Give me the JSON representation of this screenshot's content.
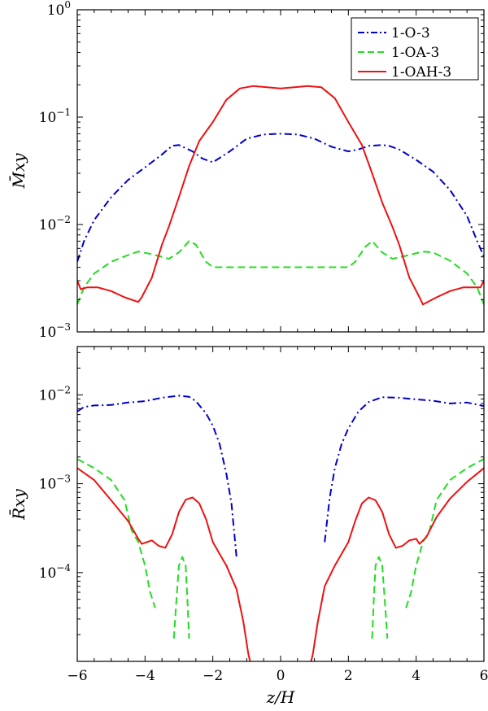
{
  "figure": {
    "xlabel": "z/H"
  },
  "chart_data": [
    {
      "type": "line",
      "panel": "top",
      "ylabel": "M̄xy",
      "yscale": "log",
      "xlim": [
        -6,
        6
      ],
      "ylim": [
        0.001,
        1
      ],
      "x_ticks": [
        -6,
        -4,
        -2,
        0,
        2,
        4,
        6
      ],
      "y_ticks": [
        {
          "value": 1,
          "base": "10",
          "exp": "0"
        },
        {
          "value": 0.1,
          "base": "10",
          "exp": "−1"
        },
        {
          "value": 0.01,
          "base": "10",
          "exp": "−2"
        },
        {
          "value": 0.001,
          "base": "10",
          "exp": "−3"
        }
      ],
      "legend": {
        "position": "top-right",
        "entries": [
          "1-O-3",
          "1-OA-3",
          "1-OAH-3"
        ]
      },
      "series": [
        {
          "name": "1-O-3",
          "color": "#0000cc",
          "style": "dashdot",
          "points": [
            [
              -6.0,
              0.0045
            ],
            [
              -5.8,
              0.007
            ],
            [
              -5.5,
              0.011
            ],
            [
              -5.0,
              0.018
            ],
            [
              -4.5,
              0.026
            ],
            [
              -4.0,
              0.034
            ],
            [
              -3.5,
              0.045
            ],
            [
              -3.2,
              0.054
            ],
            [
              -3.0,
              0.055
            ],
            [
              -2.6,
              0.048
            ],
            [
              -2.3,
              0.041
            ],
            [
              -2.0,
              0.038
            ],
            [
              -1.5,
              0.048
            ],
            [
              -1.0,
              0.063
            ],
            [
              -0.5,
              0.069
            ],
            [
              0.0,
              0.07
            ],
            [
              0.5,
              0.069
            ],
            [
              1.0,
              0.063
            ],
            [
              1.5,
              0.053
            ],
            [
              2.0,
              0.048
            ],
            [
              2.3,
              0.05
            ],
            [
              2.6,
              0.054
            ],
            [
              3.0,
              0.055
            ],
            [
              3.2,
              0.054
            ],
            [
              3.5,
              0.05
            ],
            [
              4.0,
              0.04
            ],
            [
              4.5,
              0.031
            ],
            [
              5.0,
              0.021
            ],
            [
              5.5,
              0.012
            ],
            [
              5.8,
              0.007
            ],
            [
              6.0,
              0.005
            ]
          ]
        },
        {
          "name": "1-OA-3",
          "color": "#22dd22",
          "style": "dashed",
          "points": [
            [
              -6.0,
              0.0018
            ],
            [
              -5.8,
              0.0026
            ],
            [
              -5.5,
              0.0035
            ],
            [
              -5.0,
              0.0045
            ],
            [
              -4.5,
              0.0052
            ],
            [
              -4.2,
              0.0056
            ],
            [
              -3.8,
              0.0053
            ],
            [
              -3.3,
              0.0048
            ],
            [
              -3.0,
              0.0055
            ],
            [
              -2.7,
              0.007
            ],
            [
              -2.5,
              0.0065
            ],
            [
              -2.2,
              0.0045
            ],
            [
              -2.0,
              0.004
            ],
            [
              -1.0,
              0.004
            ],
            [
              0.0,
              0.004
            ],
            [
              1.0,
              0.004
            ],
            [
              2.0,
              0.004
            ],
            [
              2.2,
              0.0045
            ],
            [
              2.5,
              0.0062
            ],
            [
              2.7,
              0.007
            ],
            [
              3.0,
              0.0055
            ],
            [
              3.3,
              0.0048
            ],
            [
              3.8,
              0.0052
            ],
            [
              4.2,
              0.0056
            ],
            [
              4.5,
              0.0055
            ],
            [
              5.0,
              0.0046
            ],
            [
              5.5,
              0.0035
            ],
            [
              5.8,
              0.0026
            ],
            [
              6.0,
              0.0018
            ]
          ]
        },
        {
          "name": "1-OAH-3",
          "color": "#ee1111",
          "style": "solid",
          "points": [
            [
              -6.0,
              0.003
            ],
            [
              -5.9,
              0.0025
            ],
            [
              -5.7,
              0.0026
            ],
            [
              -5.4,
              0.0026
            ],
            [
              -5.0,
              0.0024
            ],
            [
              -4.6,
              0.0021
            ],
            [
              -4.2,
              0.0019
            ],
            [
              -4.1,
              0.0021
            ],
            [
              -3.8,
              0.0032
            ],
            [
              -3.5,
              0.0065
            ],
            [
              -3.3,
              0.0095
            ],
            [
              -3.0,
              0.018
            ],
            [
              -2.7,
              0.035
            ],
            [
              -2.4,
              0.06
            ],
            [
              -2.0,
              0.09
            ],
            [
              -1.6,
              0.145
            ],
            [
              -1.2,
              0.185
            ],
            [
              -0.8,
              0.195
            ],
            [
              -0.4,
              0.19
            ],
            [
              0.0,
              0.185
            ],
            [
              0.4,
              0.19
            ],
            [
              0.8,
              0.195
            ],
            [
              1.2,
              0.19
            ],
            [
              1.6,
              0.15
            ],
            [
              2.0,
              0.09
            ],
            [
              2.4,
              0.055
            ],
            [
              2.7,
              0.03
            ],
            [
              3.0,
              0.016
            ],
            [
              3.3,
              0.0095
            ],
            [
              3.5,
              0.0065
            ],
            [
              3.8,
              0.0032
            ],
            [
              4.1,
              0.0021
            ],
            [
              4.2,
              0.0018
            ],
            [
              4.6,
              0.0021
            ],
            [
              5.0,
              0.0024
            ],
            [
              5.4,
              0.0026
            ],
            [
              5.7,
              0.0026
            ],
            [
              5.9,
              0.0026
            ],
            [
              6.0,
              0.003
            ]
          ]
        }
      ]
    },
    {
      "type": "line",
      "panel": "bottom",
      "ylabel": "R̄xy",
      "yscale": "log",
      "xlim": [
        -6,
        6
      ],
      "ylim": [
        1e-05,
        0.035
      ],
      "x_ticks": [
        -6,
        -4,
        -2,
        0,
        2,
        4,
        6
      ],
      "y_ticks": [
        {
          "value": 0.01,
          "base": "10",
          "exp": "−2"
        },
        {
          "value": 0.001,
          "base": "10",
          "exp": "−3"
        },
        {
          "value": 0.0001,
          "base": "10",
          "exp": "−4"
        }
      ],
      "series": [
        {
          "name": "1-O-3",
          "color": "#0000cc",
          "style": "dashdot",
          "segments": [
            [
              [
                -6.0,
                0.0065
              ],
              [
                -5.8,
                0.0073
              ],
              [
                -5.5,
                0.0076
              ],
              [
                -5.0,
                0.0077
              ],
              [
                -4.5,
                0.0082
              ],
              [
                -4.0,
                0.0085
              ],
              [
                -3.5,
                0.0093
              ],
              [
                -3.0,
                0.0098
              ],
              [
                -2.7,
                0.0095
              ],
              [
                -2.5,
                0.0085
              ],
              [
                -2.2,
                0.0062
              ],
              [
                -2.0,
                0.0045
              ],
              [
                -1.8,
                0.0028
              ],
              [
                -1.6,
                0.0013
              ],
              [
                -1.45,
                0.0006
              ],
              [
                -1.3,
                0.00015
              ]
            ],
            [
              [
                1.3,
                0.00022
              ],
              [
                1.45,
                0.0007
              ],
              [
                1.6,
                0.0015
              ],
              [
                1.8,
                0.0028
              ],
              [
                2.0,
                0.0042
              ],
              [
                2.3,
                0.0065
              ],
              [
                2.6,
                0.0083
              ],
              [
                3.0,
                0.0094
              ],
              [
                3.5,
                0.0093
              ],
              [
                4.0,
                0.0089
              ],
              [
                4.5,
                0.0086
              ],
              [
                5.0,
                0.008
              ],
              [
                5.5,
                0.0082
              ],
              [
                6.0,
                0.0075
              ]
            ]
          ]
        },
        {
          "name": "1-OA-3",
          "color": "#22dd22",
          "style": "dashed",
          "segments": [
            [
              [
                -6.0,
                0.0019
              ],
              [
                -5.5,
                0.0015
              ],
              [
                -5.0,
                0.0011
              ],
              [
                -4.6,
                0.00065
              ],
              [
                -4.4,
                0.0003
              ],
              [
                -4.2,
                0.00022
              ],
              [
                -4.0,
                0.00012
              ],
              [
                -3.85,
                6e-05
              ],
              [
                -3.7,
                4e-05
              ]
            ],
            [
              [
                -3.15,
                1.8e-05
              ],
              [
                -3.1,
                3.5e-05
              ],
              [
                -3.0,
                0.00012
              ],
              [
                -2.9,
                0.00015
              ],
              [
                -2.8,
                0.00012
              ],
              [
                -2.75,
                5e-05
              ],
              [
                -2.7,
                1.8e-05
              ]
            ],
            [
              [
                2.7,
                1.8e-05
              ],
              [
                2.75,
                5e-05
              ],
              [
                2.8,
                0.00012
              ],
              [
                2.9,
                0.00015
              ],
              [
                3.0,
                0.00012
              ],
              [
                3.1,
                3.5e-05
              ],
              [
                3.15,
                1.8e-05
              ]
            ],
            [
              [
                3.7,
                4e-05
              ],
              [
                3.85,
                6e-05
              ],
              [
                4.0,
                0.00012
              ],
              [
                4.2,
                0.00022
              ],
              [
                4.4,
                0.0003
              ],
              [
                4.6,
                0.00065
              ],
              [
                5.0,
                0.0011
              ],
              [
                5.5,
                0.0015
              ],
              [
                6.0,
                0.0019
              ]
            ]
          ]
        },
        {
          "name": "1-OAH-3",
          "color": "#ee1111",
          "style": "solid",
          "segments": [
            [
              [
                -6.0,
                0.0015
              ],
              [
                -5.5,
                0.0011
              ],
              [
                -5.0,
                0.00065
              ],
              [
                -4.5,
                0.00038
              ],
              [
                -4.2,
                0.00024
              ],
              [
                -4.1,
                0.00021
              ],
              [
                -3.8,
                0.00023
              ],
              [
                -3.6,
                0.0002
              ],
              [
                -3.4,
                0.00019
              ],
              [
                -3.2,
                0.00027
              ],
              [
                -3.0,
                0.00048
              ],
              [
                -2.8,
                0.00066
              ],
              [
                -2.6,
                0.0007
              ],
              [
                -2.4,
                0.0006
              ],
              [
                -2.2,
                0.0004
              ],
              [
                -2.0,
                0.00022
              ],
              [
                -1.6,
                0.00012
              ],
              [
                -1.3,
                6.5e-05
              ],
              [
                -1.1,
                2.8e-05
              ],
              [
                -0.95,
                1.2e-05
              ],
              [
                -0.9,
                1e-05
              ]
            ],
            [
              [
                0.9,
                1e-05
              ],
              [
                0.95,
                1.2e-05
              ],
              [
                1.1,
                2.8e-05
              ],
              [
                1.3,
                7e-05
              ],
              [
                1.6,
                0.00012
              ],
              [
                2.0,
                0.00022
              ],
              [
                2.2,
                0.00038
              ],
              [
                2.4,
                0.0006
              ],
              [
                2.6,
                0.0007
              ],
              [
                2.8,
                0.00065
              ],
              [
                3.0,
                0.00048
              ],
              [
                3.2,
                0.00027
              ],
              [
                3.4,
                0.00019
              ],
              [
                3.6,
                0.0002
              ],
              [
                3.8,
                0.00023
              ],
              [
                4.0,
                0.00024
              ],
              [
                4.1,
                0.00021
              ],
              [
                4.3,
                0.00025
              ],
              [
                4.6,
                0.00042
              ],
              [
                5.0,
                0.00068
              ],
              [
                5.5,
                0.00105
              ],
              [
                6.0,
                0.0015
              ]
            ]
          ]
        }
      ]
    }
  ]
}
